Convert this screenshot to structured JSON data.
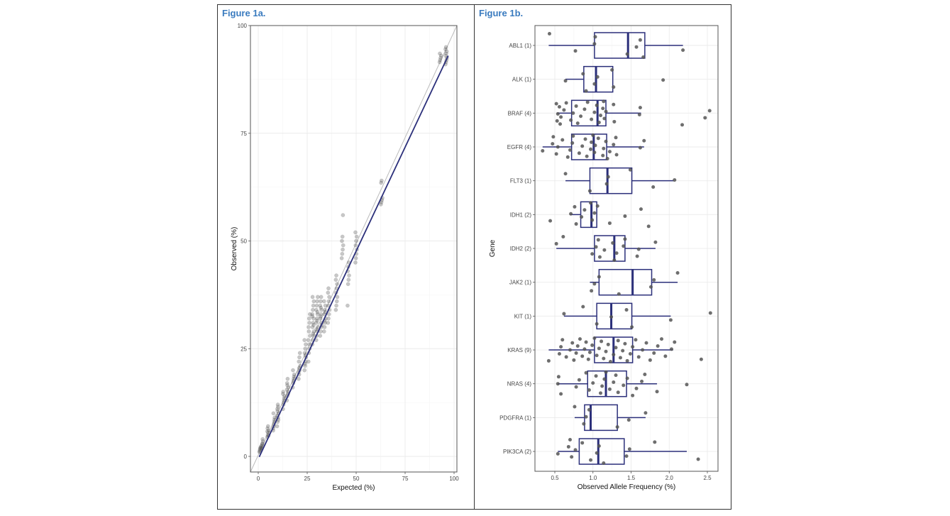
{
  "figures": {
    "a_title": "Figure 1a.",
    "b_title": "Figure 1b."
  },
  "chart_data": [
    {
      "type": "scatter",
      "title": "Figure 1a.",
      "xlabel": "Expected (%)",
      "ylabel": "Observed (%)",
      "xlim": [
        -2.5,
        103
      ],
      "ylim": [
        -3.5,
        100
      ],
      "xticks": [
        0,
        25,
        50,
        75,
        100
      ],
      "yticks": [
        0,
        25,
        50,
        75,
        100
      ],
      "grid": true,
      "reference_line": {
        "name": "identity",
        "slope": 1,
        "intercept": 0,
        "color": "#bbbbbb"
      },
      "regression_line": {
        "name": "fit",
        "slope": 0.965,
        "intercept": -0.6,
        "x_range": [
          0.5,
          97
        ],
        "color": "#2b2f7a"
      },
      "point_color": "#444444",
      "groups": [
        {
          "x": 1,
          "y": [
            1,
            1.5,
            2,
            2.3,
            1.2,
            1.8
          ]
        },
        {
          "x": 2,
          "y": [
            2,
            2.5,
            3,
            3.5,
            1.8,
            2.8,
            4
          ]
        },
        {
          "x": 5,
          "y": [
            4.5,
            5,
            5.5,
            6,
            6.5,
            7,
            4.8,
            5.8
          ]
        },
        {
          "x": 8,
          "y": [
            6,
            7,
            8,
            9,
            10,
            7.5,
            8.5,
            6.5
          ]
        },
        {
          "x": 10,
          "y": [
            7,
            8,
            9,
            10,
            11,
            12,
            8.5,
            9.5,
            10.5,
            11.5
          ]
        },
        {
          "x": 13,
          "y": [
            11,
            12,
            13,
            14,
            15,
            12.5,
            13.5,
            14.5
          ]
        },
        {
          "x": 15,
          "y": [
            13,
            14,
            15,
            16,
            17,
            18,
            14.5,
            15.5,
            16.5
          ]
        },
        {
          "x": 18,
          "y": [
            16,
            17,
            18,
            19,
            20,
            17.5,
            18.5
          ]
        },
        {
          "x": 21,
          "y": [
            18,
            19,
            20,
            21,
            22,
            23,
            24,
            19.5,
            20.5
          ]
        },
        {
          "x": 24,
          "y": [
            20,
            21,
            22,
            23,
            24,
            25,
            26,
            27,
            21.5,
            23.5
          ]
        },
        {
          "x": 26,
          "y": [
            22,
            24,
            26,
            28,
            30,
            32,
            25,
            27,
            29,
            31,
            33
          ]
        },
        {
          "x": 28,
          "y": [
            26,
            27,
            28,
            29,
            30,
            31,
            32,
            33,
            34,
            35,
            36,
            37,
            28.5,
            30.5,
            32.5
          ]
        },
        {
          "x": 30,
          "y": [
            27,
            28,
            29,
            30,
            31,
            32,
            33,
            34,
            35,
            36,
            37,
            29.5,
            31.5,
            33.5
          ]
        },
        {
          "x": 32,
          "y": [
            28,
            29,
            30,
            31,
            32,
            33,
            34,
            35,
            36,
            37,
            30.5,
            32.5,
            34.5
          ]
        },
        {
          "x": 34,
          "y": [
            29,
            30,
            31,
            32,
            33,
            34,
            35,
            36,
            31.5,
            33.5
          ]
        },
        {
          "x": 36,
          "y": [
            31,
            32,
            33,
            34,
            35,
            36,
            37,
            38,
            39
          ]
        },
        {
          "x": 40,
          "y": [
            34,
            35,
            36,
            37,
            38,
            39,
            40,
            41,
            42
          ]
        },
        {
          "x": 43,
          "y": [
            46,
            47,
            48,
            49,
            50,
            51,
            56
          ]
        },
        {
          "x": 46,
          "y": [
            35,
            40,
            41,
            42,
            43,
            44,
            45
          ]
        },
        {
          "x": 50,
          "y": [
            45,
            46,
            47,
            48,
            49,
            50,
            51,
            52
          ]
        },
        {
          "x": 63,
          "y": [
            58.5,
            59,
            59.5,
            60,
            63.5,
            64
          ]
        },
        {
          "x": 93,
          "y": [
            91.5,
            92,
            92.5,
            93,
            93.5
          ]
        },
        {
          "x": 96,
          "y": [
            91,
            91.5,
            92,
            92.5,
            93,
            93.5,
            94,
            94.5,
            95
          ]
        }
      ]
    },
    {
      "type": "box",
      "title": "Figure 1b.",
      "orientation": "horizontal",
      "xlabel": "Observed Allele Frequency (%)",
      "ylabel": "Gene",
      "xlim": [
        0.25,
        2.62
      ],
      "xticks": [
        0.5,
        1.0,
        1.5,
        2.0,
        2.5
      ],
      "xtick_labels": [
        "0.5",
        "1.0",
        "1.5",
        "2.0",
        "2.5"
      ],
      "grid": true,
      "box_color": "#2b2f7a",
      "point_color": "#555555",
      "categories": [
        "ABL1 (1)",
        "ALK (1)",
        "BRAF (4)",
        "EGFR (4)",
        "FLT3 (1)",
        "IDH1 (2)",
        "IDH2 (2)",
        "JAK2 (1)",
        "KIT (1)",
        "KRAS (9)",
        "NRAS (4)",
        "PDGFRA (1)",
        "PIK3CA (2)"
      ],
      "boxes": [
        {
          "whisker_low": 0.42,
          "q1": 1.02,
          "median": 1.46,
          "q3": 1.68,
          "whisker_high": 2.18,
          "points": [
            0.43,
            0.77,
            1.02,
            1.03,
            1.45,
            1.57,
            1.62,
            1.66,
            2.18
          ]
        },
        {
          "whisker_low": 0.64,
          "q1": 0.88,
          "median": 1.04,
          "q3": 1.26,
          "whisker_high": 1.26,
          "points": [
            0.64,
            0.87,
            0.91,
            1.02,
            1.06,
            1.25,
            1.27,
            1.92
          ]
        },
        {
          "whisker_low": 0.53,
          "q1": 0.72,
          "median": 1.06,
          "q3": 1.17,
          "whisker_high": 1.63,
          "points": [
            0.52,
            0.53,
            0.54,
            0.56,
            0.57,
            0.58,
            0.62,
            0.65,
            0.71,
            0.74,
            0.78,
            0.8,
            0.84,
            0.89,
            0.93,
            0.98,
            1.02,
            1.05,
            1.08,
            1.1,
            1.13,
            1.14,
            1.15,
            1.17,
            1.27,
            1.28,
            1.61,
            1.62,
            2.17,
            2.47,
            2.53
          ]
        },
        {
          "whisker_low": 0.34,
          "q1": 0.72,
          "median": 1.01,
          "q3": 1.18,
          "whisker_high": 1.67,
          "points": [
            0.34,
            0.47,
            0.48,
            0.52,
            0.54,
            0.6,
            0.67,
            0.7,
            0.73,
            0.74,
            0.82,
            0.86,
            0.9,
            0.92,
            0.97,
            0.98,
            1.0,
            1.02,
            1.03,
            1.07,
            1.13,
            1.14,
            1.17,
            1.19,
            1.22,
            1.27,
            1.3,
            1.31,
            1.62,
            1.67
          ]
        },
        {
          "whisker_low": 0.64,
          "q1": 0.96,
          "median": 1.19,
          "q3": 1.51,
          "whisker_high": 2.06,
          "points": [
            0.64,
            0.96,
            1.18,
            1.2,
            1.49,
            1.79,
            2.07
          ]
        },
        {
          "whisker_low": 0.7,
          "q1": 0.84,
          "median": 0.98,
          "q3": 1.05,
          "whisker_high": 1.05,
          "points": [
            0.44,
            0.71,
            0.76,
            0.78,
            0.85,
            0.89,
            0.97,
            0.99,
            1.02,
            1.06,
            1.22,
            1.42,
            1.63,
            1.73
          ]
        },
        {
          "whisker_low": 0.52,
          "q1": 1.02,
          "median": 1.28,
          "q3": 1.42,
          "whisker_high": 1.82,
          "points": [
            0.52,
            0.61,
            0.99,
            1.04,
            1.07,
            1.09,
            1.15,
            1.26,
            1.28,
            1.31,
            1.4,
            1.42,
            1.58,
            1.6,
            1.82
          ]
        },
        {
          "whisker_low": 0.96,
          "q1": 1.08,
          "median": 1.52,
          "q3": 1.77,
          "whisker_high": 2.11,
          "points": [
            0.98,
            1.02,
            1.08,
            1.34,
            1.76,
            1.8,
            2.11
          ]
        },
        {
          "whisker_low": 0.62,
          "q1": 1.05,
          "median": 1.24,
          "q3": 1.51,
          "whisker_high": 2.02,
          "points": [
            0.62,
            0.87,
            1.05,
            1.24,
            1.44,
            1.51,
            2.02,
            2.54
          ]
        },
        {
          "whisker_low": 0.42,
          "q1": 1.02,
          "median": 1.27,
          "q3": 1.52,
          "whisker_high": 2.05,
          "points": [
            0.42,
            0.56,
            0.58,
            0.6,
            0.65,
            0.7,
            0.73,
            0.75,
            0.78,
            0.8,
            0.83,
            0.86,
            0.89,
            0.91,
            0.94,
            0.96,
            0.99,
            1.02,
            1.05,
            1.08,
            1.11,
            1.14,
            1.17,
            1.2,
            1.23,
            1.27,
            1.3,
            1.33,
            1.36,
            1.39,
            1.42,
            1.45,
            1.49,
            1.52,
            1.56,
            1.6,
            1.65,
            1.7,
            1.75,
            1.8,
            1.85,
            1.9,
            1.95,
            2.03,
            2.07,
            2.42
          ]
        },
        {
          "whisker_low": 0.54,
          "q1": 0.93,
          "median": 1.17,
          "q3": 1.44,
          "whisker_high": 1.84,
          "points": [
            0.54,
            0.55,
            0.58,
            0.78,
            0.82,
            0.91,
            0.95,
            1.0,
            1.04,
            1.1,
            1.12,
            1.15,
            1.17,
            1.22,
            1.27,
            1.3,
            1.33,
            1.4,
            1.45,
            1.52,
            1.57,
            1.64,
            1.68,
            1.84,
            2.23
          ]
        },
        {
          "whisker_low": 0.76,
          "q1": 0.89,
          "median": 0.97,
          "q3": 1.32,
          "whisker_high": 1.69,
          "points": [
            0.76,
            0.88,
            0.91,
            0.95,
            1.32,
            1.47,
            1.69
          ]
        },
        {
          "whisker_low": 0.54,
          "q1": 0.82,
          "median": 1.07,
          "q3": 1.41,
          "whisker_high": 2.23,
          "points": [
            0.54,
            0.68,
            0.7,
            0.72,
            0.77,
            0.86,
            0.97,
            1.05,
            1.08,
            1.14,
            1.44,
            1.48,
            1.81,
            2.38
          ]
        }
      ]
    }
  ]
}
